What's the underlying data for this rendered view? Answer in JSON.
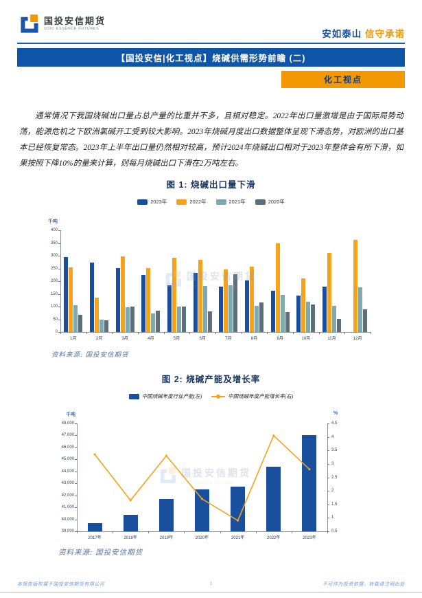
{
  "header": {
    "logo_title": "国投安信期货",
    "logo_subtitle": "SDIC ESSENCE FUTURES",
    "slogan_left": "安如泰山",
    "slogan_right": "信守承诺",
    "banner_title": "【国投安信|化工视点】烧碱供需形势前瞻 (二)",
    "category_tag": "化工视点"
  },
  "article": {
    "paragraph": "通常情况下我国烧碱出口量占总产量的比重并不多，且相对稳定。2022年出口量激增是由于国际局势动荡，能源危机之下欧洲氯碱开工受到较大影响。2023年烧碱月度出口数据整体呈现下滑态势，对欧洲的出口基本已经恢复常态。2023年上半年出口量仍然相对较高，预计2024年烧碱出口相对于2023年整体会有所下滑，如果按照下降10%的量来计算，则每月烧碱出口下滑在2万吨左右。"
  },
  "sources": {
    "source_note_1": "资料来源: 国投安信期货",
    "source_note_2": "资料来源: 国投安信期货"
  },
  "watermark": {
    "text": "国投安信期货",
    "subtext": "SDIC ESSENCE FUTURES"
  },
  "footer": {
    "left": "本报告版权属于国投安信期货有限公司",
    "page_number": "1",
    "right": "不可作为投资依据，转载请注明出处"
  },
  "colors": {
    "primary_blue": "#0f55a7",
    "accent_orange": "#f39800",
    "bar_blue_2023": "#1a4f9e",
    "bar_orange_2022": "#f7a21c",
    "bar_teal_2021": "#7fa9b1",
    "bar_slate_2020": "#5d6f7b"
  },
  "chart_data": [
    {
      "type": "bar",
      "title": "图 1: 烧碱出口量下滑",
      "ylabel": "千吨",
      "ylim": [
        0,
        400
      ],
      "ytick_step": 50,
      "grid": false,
      "legend_position": "top",
      "categories": [
        "1月",
        "2月",
        "3月",
        "4月",
        "5月",
        "6月",
        "7月",
        "8月",
        "9月",
        "10月",
        "11月",
        "12月"
      ],
      "series": [
        {
          "name": "2023年",
          "color": "#1a4f9e",
          "values": [
            295,
            273,
            250,
            225,
            185,
            233,
            178,
            203,
            161,
            144,
            179,
            null
          ]
        },
        {
          "name": "2022年",
          "color": "#f7a21c",
          "values": [
            253,
            136,
            297,
            252,
            291,
            283,
            245,
            258,
            349,
            212,
            311,
            361
          ]
        },
        {
          "name": "2021年",
          "color": "#7fa9b1",
          "values": [
            105,
            48,
            97,
            73,
            101,
            181,
            183,
            103,
            147,
            119,
            103,
            177
          ]
        },
        {
          "name": "2020年",
          "color": "#5d6f7b",
          "values": [
            68,
            46,
            100,
            85,
            99,
            80,
            228,
            116,
            79,
            108,
            50,
            89
          ]
        }
      ]
    },
    {
      "type": "bar+line",
      "title": "图 2: 烧碱产能及增长率",
      "ylabel_left": "千吨",
      "ylabel_right": "%",
      "ylim_left": [
        39000,
        48000
      ],
      "ytick_step_left": 1000,
      "ylim_right": [
        0.5,
        4.5
      ],
      "ytick_step_right": 0.5,
      "grid": false,
      "legend_position": "top",
      "categories": [
        "2017年",
        "2018年",
        "2019年",
        "2020年",
        "2021年",
        "2022年",
        "2023年"
      ],
      "series": [
        {
          "name": "中国烧碱年度行业产能(左)",
          "type": "bar",
          "axis": "left",
          "color": "#1a4f9e",
          "values": [
            39700,
            40350,
            41700,
            42500,
            42700,
            44400,
            47000
          ]
        },
        {
          "name": "中国烧碱年度产能增长率(右)",
          "type": "line",
          "axis": "right",
          "color": "#f7a21c",
          "values": [
            3.35,
            1.65,
            3.3,
            1.7,
            0.9,
            4.05,
            2.8
          ]
        }
      ]
    }
  ]
}
